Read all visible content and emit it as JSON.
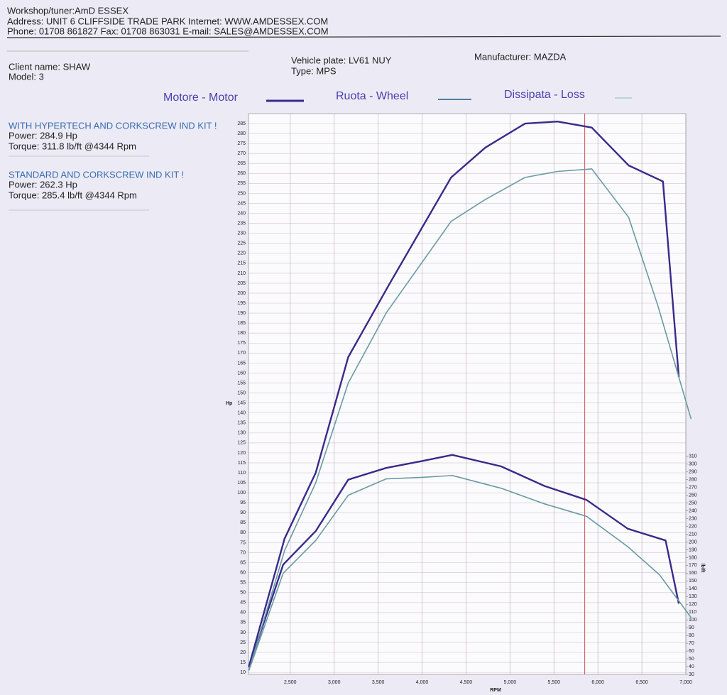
{
  "header": {
    "workshop": "Workshop/tuner:AmD ESSEX",
    "address": "Address: UNIT 6 CLIFFSIDE TRADE PARK Internet: WWW.AMDESSEX.COM",
    "phone": "Phone: 01708 861827 Fax: 01708 863031 E-mail: SALES@AMDESSEX.COM"
  },
  "vehicle": {
    "client": "Client name: SHAW",
    "model": "Model: 3",
    "plate": "Vehicle plate: LV61 NUY",
    "type": "Type: MPS",
    "manufacturer": "Manufacturer: MAZDA"
  },
  "chart_data": {
    "type": "dyno",
    "legend": [
      {
        "name": "Motore - Motor",
        "color": "#3a2a8a"
      },
      {
        "name": "Ruota - Wheel",
        "color": "#4f7f9a"
      },
      {
        "name": "Dissipata - Loss",
        "color": "#8fb0c4"
      }
    ],
    "runs": [
      {
        "name": "WITH HYPERTECH AND CORKSCREW IND KIT !",
        "color": "#3a2a8a",
        "power_text": "Power: 284.9 Hp",
        "torque_text": "Torque: 311.8 lb/ft @4344 Rpm",
        "power": {
          "x": [
            2030,
            2435,
            2790,
            3160,
            3620,
            4330,
            4720,
            5170,
            5540,
            5930,
            6350,
            6740,
            6920
          ],
          "values": [
            13,
            77,
            110,
            168,
            204,
            258,
            273,
            285,
            286,
            283,
            264,
            256,
            158
          ]
        },
        "torque": {
          "axis": "y2",
          "x": [
            2030,
            2420,
            2790,
            3160,
            3590,
            4000,
            4344,
            4900,
            5390,
            5870,
            6340,
            6770,
            6920
          ],
          "values": [
            39,
            171,
            214,
            280,
            295,
            304,
            311.8,
            297,
            272,
            254,
            217,
            202,
            121
          ]
        }
      },
      {
        "name": "STANDARD AND CORKSCREW IND KIT !",
        "color": "#6a9aa4",
        "power_text": "Power: 262.3 Hp",
        "torque_text": "Torque: 285.4 lb/ft @4344 Rpm",
        "power": {
          "x": [
            2030,
            2435,
            2790,
            3160,
            3590,
            4330,
            4720,
            5170,
            5540,
            5930,
            6350,
            6680,
            7060
          ],
          "values": [
            11,
            71,
            105,
            155,
            190,
            236,
            247,
            258,
            261,
            262.3,
            238,
            194,
            137
          ]
        },
        "torque": {
          "axis": "y2",
          "x": [
            2030,
            2420,
            2790,
            3160,
            3590,
            4000,
            4344,
            4900,
            5390,
            5870,
            6340,
            6700,
            7060
          ],
          "values": [
            35,
            160,
            202,
            260,
            281,
            283,
            285.4,
            269,
            249,
            233,
            194,
            158,
            103
          ]
        }
      }
    ],
    "xlabel": "RPM",
    "ylabel": "Hp",
    "y2label": "lb/ft",
    "xlim": [
      2025,
      7000
    ],
    "xticks": [
      {
        "value": 2500,
        "label": "2,500"
      },
      {
        "value": 3000,
        "label": "3,000"
      },
      {
        "value": 3500,
        "label": "3,500"
      },
      {
        "value": 4000,
        "label": "4,000"
      },
      {
        "value": 4500,
        "label": "4,500"
      },
      {
        "value": 5000,
        "label": "5,000"
      },
      {
        "value": 5500,
        "label": "5,500"
      },
      {
        "value": 6000,
        "label": "6,000"
      },
      {
        "value": 6500,
        "label": "6,500"
      },
      {
        "value": 7000,
        "label": "7,000"
      }
    ],
    "ylim": [
      9,
      290
    ],
    "yticks": [
      10,
      15,
      20,
      25,
      30,
      35,
      40,
      45,
      50,
      55,
      60,
      65,
      70,
      75,
      80,
      85,
      90,
      95,
      100,
      105,
      110,
      115,
      120,
      125,
      130,
      135,
      140,
      145,
      150,
      155,
      160,
      165,
      170,
      175,
      180,
      185,
      190,
      195,
      200,
      205,
      210,
      215,
      220,
      225,
      230,
      235,
      240,
      245,
      250,
      255,
      260,
      265,
      270,
      275,
      280,
      285
    ],
    "y2lim": [
      30,
      750
    ],
    "y2ticks": [
      30,
      40,
      50,
      60,
      70,
      80,
      90,
      100,
      110,
      120,
      130,
      140,
      150,
      160,
      170,
      180,
      190,
      200,
      210,
      220,
      230,
      240,
      250,
      260,
      270,
      280,
      290,
      300,
      310
    ],
    "marker_x": 5850,
    "marker_color": "#d05050",
    "grid": true
  }
}
